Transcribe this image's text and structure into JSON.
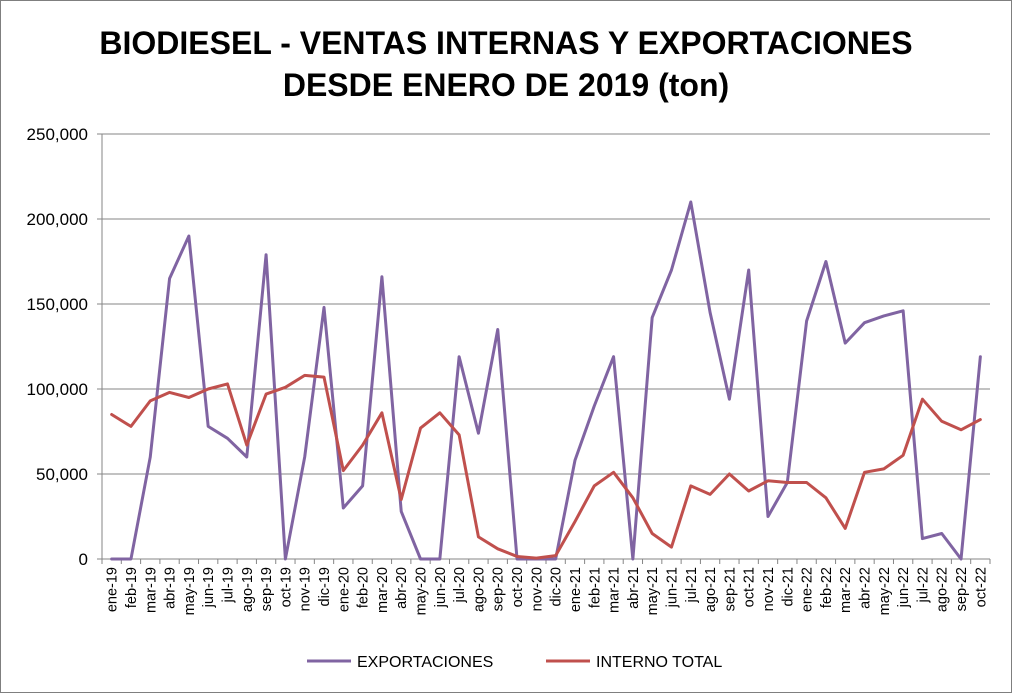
{
  "chart_data": {
    "type": "line",
    "title_line1": "BIODIESEL - VENTAS INTERNAS Y EXPORTACIONES",
    "title_line2": "DESDE ENERO DE 2019 (ton)",
    "xlabel": "",
    "ylabel": "",
    "ylim": [
      0,
      250000
    ],
    "yticks": [
      0,
      50000,
      100000,
      150000,
      200000,
      250000
    ],
    "ytick_labels": [
      "0",
      "50,000",
      "100,000",
      "150,000",
      "200,000",
      "250,000"
    ],
    "grid": true,
    "legend_position": "bottom",
    "categories": [
      "ene-19",
      "feb-19",
      "mar-19",
      "abr-19",
      "may-19",
      "jun-19",
      "jul-19",
      "ago-19",
      "sep-19",
      "oct-19",
      "nov-19",
      "dic-19",
      "ene-20",
      "feb-20",
      "mar-20",
      "abr-20",
      "may-20",
      "jun-20",
      "jul-20",
      "ago-20",
      "sep-20",
      "oct-20",
      "nov-20",
      "dic-20",
      "ene-21",
      "feb-21",
      "mar-21",
      "abr-21",
      "may-21",
      "jun-21",
      "jul-21",
      "ago-21",
      "sep-21",
      "oct-21",
      "nov-21",
      "dic-21",
      "ene-22",
      "feb-22",
      "mar-22",
      "abr-22",
      "may-22",
      "jun-22",
      "jul-22",
      "ago-22",
      "sep-22",
      "oct-22"
    ],
    "series": [
      {
        "name": "EXPORTACIONES",
        "color": "#8064a2",
        "values": [
          0,
          0,
          60000,
          165000,
          190000,
          78000,
          71000,
          60000,
          179000,
          0,
          60000,
          148000,
          30000,
          43000,
          166000,
          28000,
          0,
          0,
          119000,
          74000,
          135000,
          0,
          0,
          0,
          58000,
          90000,
          119000,
          0,
          142000,
          170000,
          210000,
          145000,
          94000,
          170000,
          25000,
          45000,
          140000,
          175000,
          127000,
          139000,
          143000,
          146000,
          12000,
          15000,
          0,
          119000
        ]
      },
      {
        "name": "INTERNO TOTAL",
        "color": "#c0504d",
        "values": [
          85000,
          78000,
          93000,
          98000,
          95000,
          100000,
          103000,
          67000,
          97000,
          101000,
          108000,
          107000,
          52000,
          67000,
          86000,
          35000,
          77000,
          86000,
          73000,
          13000,
          6000,
          1500,
          500,
          2000,
          22000,
          43000,
          51000,
          36000,
          15000,
          7000,
          43000,
          38000,
          50000,
          40000,
          46000,
          45000,
          45000,
          36000,
          18000,
          51000,
          53000,
          61000,
          94000,
          81000,
          76000,
          82000
        ]
      }
    ]
  }
}
